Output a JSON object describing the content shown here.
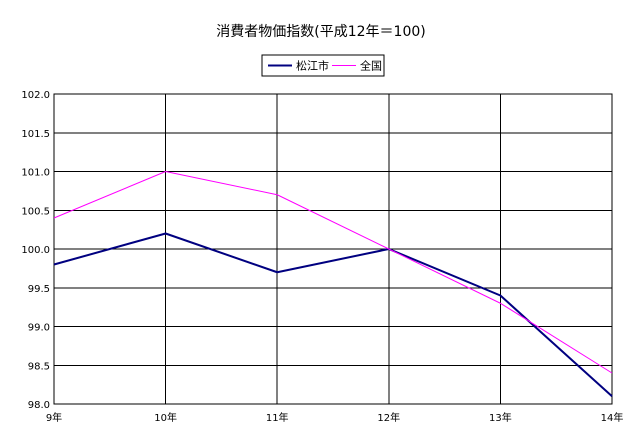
{
  "chart_data": {
    "type": "line",
    "title": "消費者物価指数(平成12年＝100)",
    "categories": [
      "9年",
      "10年",
      "11年",
      "12年",
      "13年",
      "14年"
    ],
    "ylim": [
      98.0,
      102.0
    ],
    "yticks": [
      "98.0",
      "98.5",
      "99.0",
      "99.5",
      "100.0",
      "100.5",
      "101.0",
      "101.5",
      "102.0"
    ],
    "grid": true,
    "legend_position": "top-center",
    "series": [
      {
        "name": "松江市",
        "color": "#000080",
        "values": [
          99.8,
          100.2,
          99.7,
          100.0,
          99.4,
          98.1
        ]
      },
      {
        "name": "全国",
        "color": "#ff00ff",
        "values": [
          100.4,
          101.0,
          100.7,
          100.0,
          99.3,
          98.4
        ]
      }
    ]
  }
}
